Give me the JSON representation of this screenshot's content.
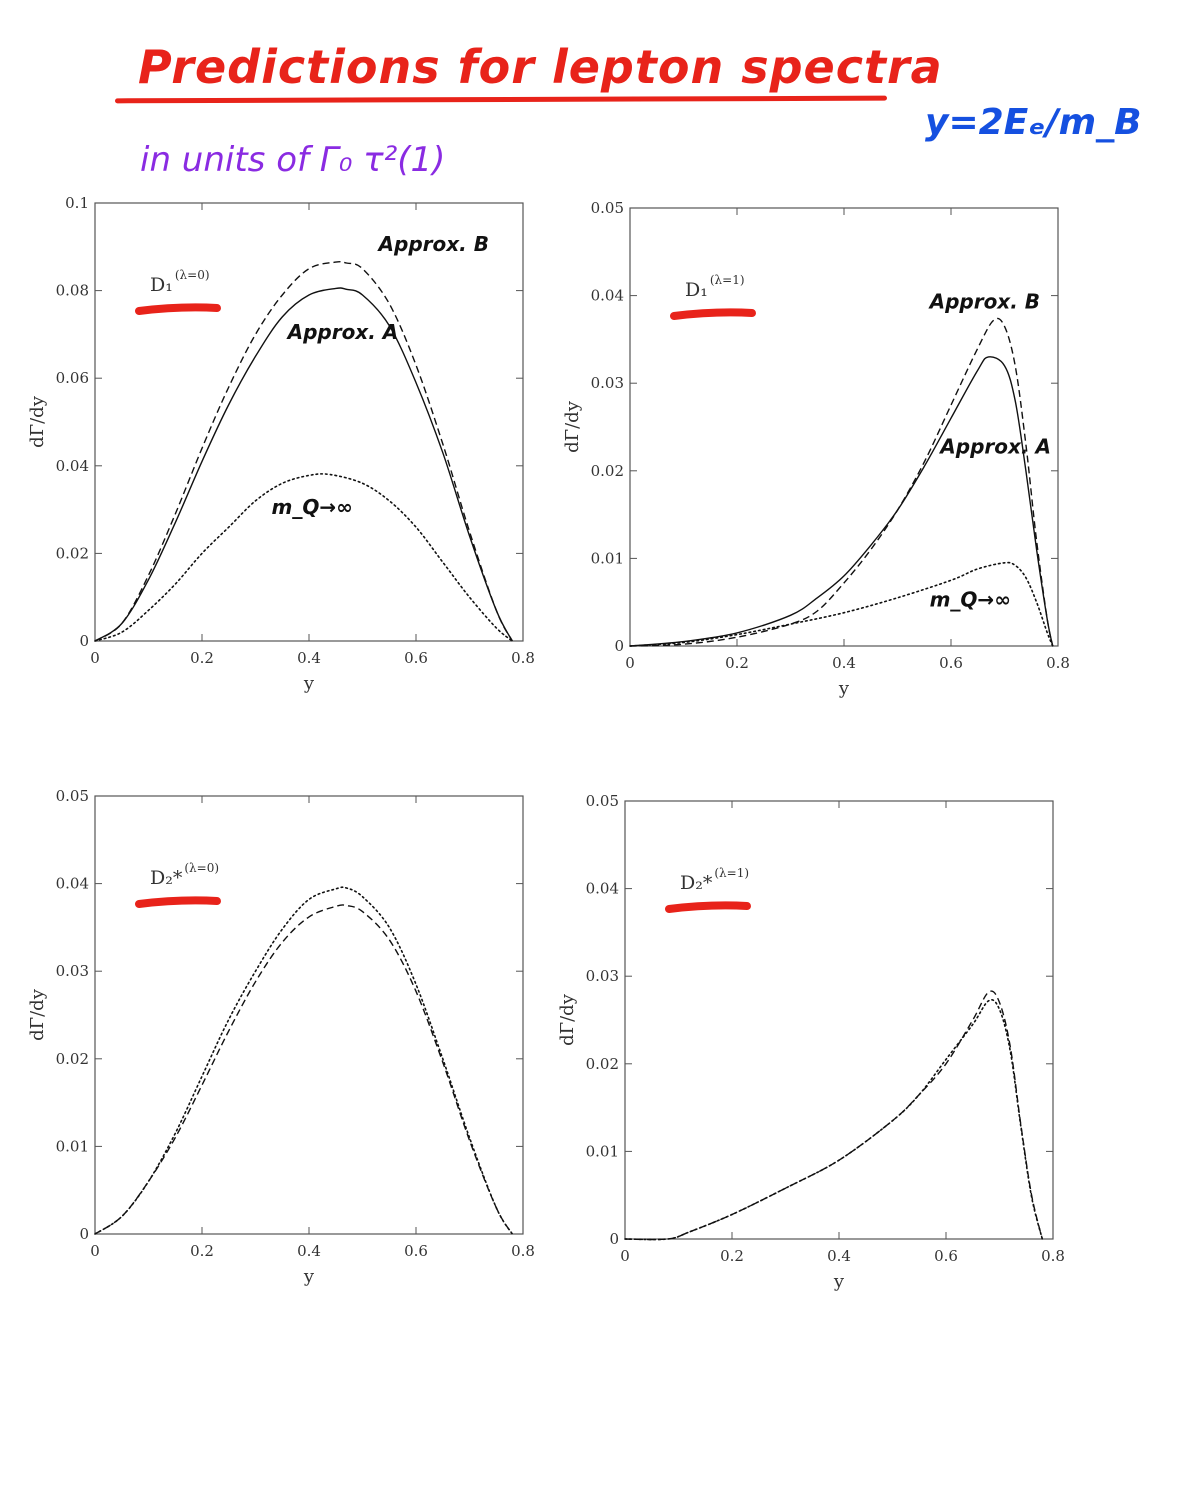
{
  "header": {
    "title": "Predictions for lepton spectra",
    "subtitle": "in units of Γ₀ τ²(1)",
    "formula": "y=2Eₑ/m_B"
  },
  "colors": {
    "title": "#e8231a",
    "subtitle": "#8a2be2",
    "formula": "#1550e0",
    "underline_marks": "#e8231a",
    "curves": "#111111"
  },
  "chart_data": [
    {
      "type": "line",
      "panel_label": "D₁",
      "panel_label_sup": "(λ=0)",
      "xlabel": "y",
      "ylabel": "dΓ/dy",
      "xlim": [
        0,
        0.8
      ],
      "ylim": [
        0,
        0.1
      ],
      "xticks": [
        "0",
        "0.2",
        "0.4",
        "0.6",
        "0.8"
      ],
      "yticks": [
        "0",
        "0.02",
        "0.04",
        "0.06",
        "0.08",
        "0.1"
      ],
      "series": [
        {
          "name": "Approx. A",
          "style": "solid",
          "x": [
            0,
            0.05,
            0.1,
            0.15,
            0.2,
            0.25,
            0.3,
            0.35,
            0.4,
            0.45,
            0.47,
            0.5,
            0.55,
            0.6,
            0.65,
            0.7,
            0.75,
            0.78
          ],
          "y": [
            0,
            0.004,
            0.014,
            0.027,
            0.041,
            0.054,
            0.065,
            0.074,
            0.079,
            0.0805,
            0.0803,
            0.079,
            0.072,
            0.059,
            0.043,
            0.024,
            0.007,
            0
          ]
        },
        {
          "name": "Approx. B",
          "style": "dashed",
          "x": [
            0,
            0.05,
            0.1,
            0.15,
            0.2,
            0.25,
            0.3,
            0.35,
            0.4,
            0.45,
            0.47,
            0.5,
            0.55,
            0.6,
            0.65,
            0.7,
            0.75,
            0.78
          ],
          "y": [
            0,
            0.004,
            0.015,
            0.029,
            0.044,
            0.058,
            0.07,
            0.079,
            0.085,
            0.0865,
            0.0863,
            0.085,
            0.077,
            0.063,
            0.045,
            0.025,
            0.007,
            0
          ]
        },
        {
          "name": "m_Q→∞",
          "style": "dotted",
          "x": [
            0,
            0.05,
            0.1,
            0.15,
            0.2,
            0.25,
            0.3,
            0.35,
            0.4,
            0.44,
            0.5,
            0.55,
            0.6,
            0.65,
            0.7,
            0.75,
            0.78
          ],
          "y": [
            0,
            0.002,
            0.007,
            0.013,
            0.02,
            0.026,
            0.032,
            0.036,
            0.0378,
            0.038,
            0.036,
            0.032,
            0.026,
            0.018,
            0.01,
            0.003,
            0
          ]
        }
      ],
      "annotations": [
        {
          "text": "Approx. B",
          "x": 0.53,
          "y": 0.089
        },
        {
          "text": "Approx. A",
          "x": 0.36,
          "y": 0.069
        },
        {
          "text": "m_Q→∞",
          "x": 0.33,
          "y": 0.029
        }
      ]
    },
    {
      "type": "line",
      "panel_label": "D₁",
      "panel_label_sup": "(λ=1)",
      "xlabel": "y",
      "ylabel": "dΓ/dy",
      "xlim": [
        0,
        0.8
      ],
      "ylim": [
        0,
        0.05
      ],
      "xticks": [
        "0",
        "0.2",
        "0.4",
        "0.6",
        "0.8"
      ],
      "yticks": [
        "0",
        "0.01",
        "0.02",
        "0.03",
        "0.04",
        "0.05"
      ],
      "series": [
        {
          "name": "Approx. A",
          "style": "solid",
          "x": [
            0,
            0.1,
            0.2,
            0.3,
            0.35,
            0.4,
            0.45,
            0.5,
            0.55,
            0.6,
            0.65,
            0.67,
            0.7,
            0.72,
            0.74,
            0.76,
            0.78,
            0.79
          ],
          "y": [
            0,
            0.0005,
            0.0015,
            0.0035,
            0.0055,
            0.008,
            0.0115,
            0.0155,
            0.0205,
            0.026,
            0.0315,
            0.033,
            0.032,
            0.028,
            0.02,
            0.011,
            0.003,
            0
          ]
        },
        {
          "name": "Approx. B",
          "style": "dashed",
          "x": [
            0,
            0.1,
            0.2,
            0.3,
            0.35,
            0.4,
            0.45,
            0.5,
            0.55,
            0.6,
            0.65,
            0.68,
            0.7,
            0.72,
            0.74,
            0.76,
            0.78,
            0.79
          ],
          "y": [
            0,
            0.0002,
            0.001,
            0.0025,
            0.004,
            0.0072,
            0.011,
            0.0155,
            0.021,
            0.0275,
            0.034,
            0.0372,
            0.0365,
            0.032,
            0.023,
            0.012,
            0.003,
            0
          ]
        },
        {
          "name": "m_Q→∞",
          "style": "dotted",
          "x": [
            0,
            0.1,
            0.2,
            0.3,
            0.4,
            0.5,
            0.6,
            0.65,
            0.7,
            0.72,
            0.74,
            0.76,
            0.78,
            0.79
          ],
          "y": [
            0,
            0.0004,
            0.0013,
            0.0025,
            0.0038,
            0.0055,
            0.0075,
            0.0088,
            0.0095,
            0.0092,
            0.0078,
            0.005,
            0.0015,
            0
          ]
        }
      ],
      "annotations": [
        {
          "text": "Approx. B",
          "x": 0.56,
          "y": 0.0385
        },
        {
          "text": "Approx. A",
          "x": 0.58,
          "y": 0.022
        },
        {
          "text": "m_Q→∞",
          "x": 0.56,
          "y": 0.0045
        }
      ]
    },
    {
      "type": "line",
      "panel_label": "D₂*",
      "panel_label_sup": "(λ=0)",
      "xlabel": "y",
      "ylabel": "dΓ/dy",
      "xlim": [
        0,
        0.8
      ],
      "ylim": [
        0,
        0.05
      ],
      "xticks": [
        "0",
        "0.2",
        "0.4",
        "0.6",
        "0.8"
      ],
      "yticks": [
        "0",
        "0.01",
        "0.02",
        "0.03",
        "0.04",
        "0.05"
      ],
      "series": [
        {
          "style": "dotted",
          "x": [
            0,
            0.05,
            0.1,
            0.15,
            0.2,
            0.25,
            0.3,
            0.35,
            0.4,
            0.45,
            0.47,
            0.5,
            0.55,
            0.6,
            0.65,
            0.7,
            0.75,
            0.78
          ],
          "y": [
            0,
            0.002,
            0.006,
            0.0115,
            0.018,
            0.0245,
            0.03,
            0.0348,
            0.0382,
            0.0394,
            0.0395,
            0.0385,
            0.035,
            0.0285,
            0.02,
            0.011,
            0.003,
            0
          ]
        },
        {
          "style": "dashed",
          "x": [
            0,
            0.05,
            0.1,
            0.15,
            0.2,
            0.25,
            0.3,
            0.35,
            0.4,
            0.45,
            0.47,
            0.5,
            0.55,
            0.6,
            0.65,
            0.7,
            0.75,
            0.78
          ],
          "y": [
            0,
            0.002,
            0.006,
            0.011,
            0.017,
            0.0232,
            0.0288,
            0.0333,
            0.0362,
            0.0374,
            0.0375,
            0.0368,
            0.0336,
            0.0277,
            0.0196,
            0.0107,
            0.003,
            0
          ]
        }
      ],
      "annotations": []
    },
    {
      "type": "line",
      "panel_label": "D₂*",
      "panel_label_sup": "(λ=1)",
      "xlabel": "y",
      "ylabel": "dΓ/dy",
      "xlim": [
        0,
        0.8
      ],
      "ylim": [
        0,
        0.05
      ],
      "xticks": [
        "0",
        "0.2",
        "0.4",
        "0.6",
        "0.8"
      ],
      "yticks": [
        "0",
        "0.01",
        "0.02",
        "0.03",
        "0.04",
        "0.05"
      ],
      "series": [
        {
          "style": "dashed",
          "x": [
            0,
            0.08,
            0.12,
            0.2,
            0.3,
            0.4,
            0.5,
            0.55,
            0.6,
            0.65,
            0.68,
            0.7,
            0.72,
            0.74,
            0.76,
            0.78
          ],
          "y": [
            0,
            0,
            0.0008,
            0.0028,
            0.0058,
            0.009,
            0.0135,
            0.0165,
            0.02,
            0.025,
            0.0282,
            0.027,
            0.022,
            0.013,
            0.005,
            0
          ]
        },
        {
          "style": "dotted",
          "x": [
            0,
            0.08,
            0.12,
            0.2,
            0.3,
            0.4,
            0.5,
            0.55,
            0.6,
            0.65,
            0.68,
            0.7,
            0.72,
            0.74,
            0.76,
            0.78
          ],
          "y": [
            0,
            0,
            0.0008,
            0.0028,
            0.0058,
            0.009,
            0.0135,
            0.0165,
            0.0205,
            0.0245,
            0.0272,
            0.0262,
            0.0215,
            0.0128,
            0.0048,
            0
          ]
        }
      ],
      "annotations": []
    }
  ]
}
